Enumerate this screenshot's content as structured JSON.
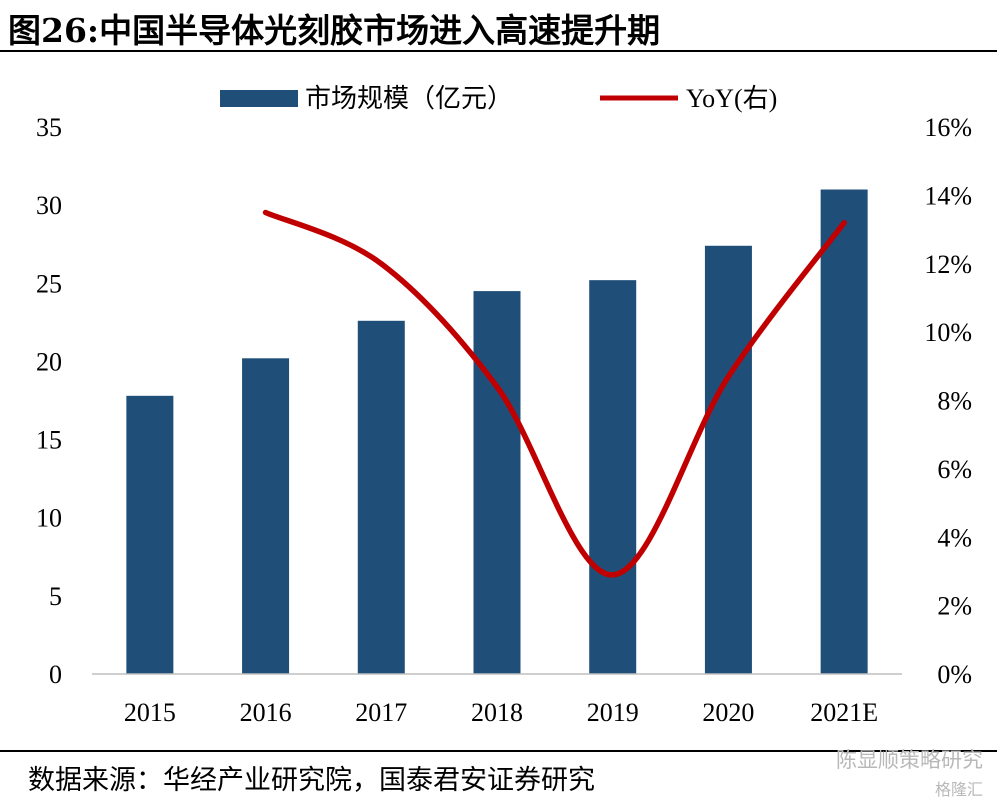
{
  "title": "图26:中国半导体光刻胶市场进入高速提升期",
  "source": "数据来源：华经产业研究院，国泰君安证券研究",
  "watermark": "陈显顺策略研究",
  "watermark2": "格隆汇",
  "colors": {
    "bar": "#1f4e79",
    "line": "#c00000"
  },
  "chart_data": {
    "type": "bar",
    "categories": [
      "2015",
      "2016",
      "2017",
      "2018",
      "2019",
      "2020",
      "2021E"
    ],
    "series": [
      {
        "name": "市场规模（亿元）",
        "type": "bar",
        "axis": "left",
        "values": [
          17.8,
          20.2,
          22.6,
          24.5,
          25.2,
          27.4,
          31.0
        ]
      },
      {
        "name": "YoY(右)",
        "type": "line",
        "axis": "right",
        "values": [
          null,
          13.5,
          12.0,
          8.4,
          2.9,
          8.7,
          13.2
        ]
      }
    ],
    "y_left": {
      "min": 0,
      "max": 35,
      "ticks": [
        "0",
        "5",
        "10",
        "15",
        "20",
        "25",
        "30",
        "35"
      ]
    },
    "y_right": {
      "min": 0,
      "max": 16,
      "ticks": [
        "0%",
        "2%",
        "4%",
        "6%",
        "8%",
        "10%",
        "12%",
        "14%",
        "16%"
      ]
    },
    "legend_position": "top-center",
    "grid": false
  }
}
